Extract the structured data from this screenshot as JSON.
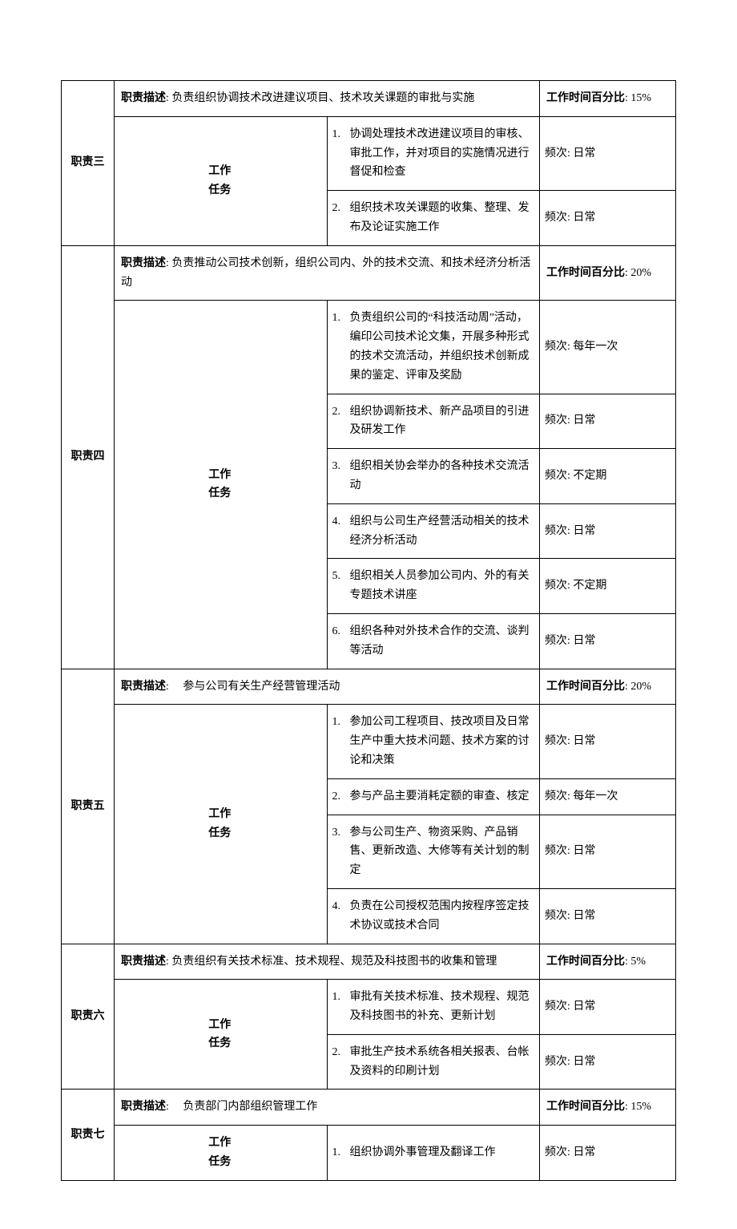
{
  "labels": {
    "desc": "职责描述",
    "taskHeader": "工作\n任务",
    "percent": "工作时间百分比",
    "freq": "频次"
  },
  "colors": {
    "text": "#000000",
    "border": "#000000",
    "background": "#ffffff"
  },
  "duties": [
    {
      "name": "职责三",
      "desc": "负责组织协调技术改进建议项目、技术攻关课题的审批与实施",
      "percent": "15%",
      "tasks": [
        {
          "n": "1.",
          "text": "协调处理技术改进建议项目的审核、审批工作，并对项目的实施情况进行督促和检查",
          "freq": "日常"
        },
        {
          "n": "2.",
          "text": "组织技术攻关课题的收集、整理、发布及论证实施工作",
          "freq": "日常"
        }
      ]
    },
    {
      "name": "职责四",
      "desc": "负责推动公司技术创新，组织公司内、外的技术交流、和技术经济分析活动",
      "percent": "20%",
      "tasks": [
        {
          "n": "1.",
          "text": "负责组织公司的“科技活动周”活动，编印公司技术论文集，开展多种形式的技术交流活动，并组织技术创新成果的鉴定、评审及奖励",
          "freq": "每年一次"
        },
        {
          "n": "2.",
          "text": "组织协调新技术、新产品项目的引进及研发工作",
          "freq": "日常"
        },
        {
          "n": "3.",
          "text": "组织相关协会举办的各种技术交流活动",
          "freq": "不定期"
        },
        {
          "n": "4.",
          "text": "组织与公司生产经营活动相关的技术经济分析活动",
          "freq": "日常"
        },
        {
          "n": "5.",
          "text": "组织相关人员参加公司内、外的有关专题技术讲座",
          "freq": "不定期"
        },
        {
          "n": "6.",
          "text": "组织各种对外技术合作的交流、谈判等活动",
          "freq": "日常"
        }
      ]
    },
    {
      "name": "职责五",
      "desc": "　参与公司有关生产经营管理活动",
      "percent": "20%",
      "tasks": [
        {
          "n": "1.",
          "text": "参加公司工程项目、技改项目及日常生产中重大技术问题、技术方案的讨论和决策",
          "freq": "日常"
        },
        {
          "n": "2.",
          "text": "参与产品主要消耗定额的审查、核定",
          "freq": "每年一次"
        },
        {
          "n": "3.",
          "text": "参与公司生产、物资采购、产品销售、更新改造、大修等有关计划的制定",
          "freq": "日常"
        },
        {
          "n": "4.",
          "text": "负责在公司授权范围内按程序签定技术协议或技术合同",
          "freq": "日常"
        }
      ]
    },
    {
      "name": "职责六",
      "desc": "负责组织有关技术标准、技术规程、规范及科技图书的收集和管理",
      "percent": "5%",
      "tasks": [
        {
          "n": "1.",
          "text": "审批有关技术标准、技术规程、规范及科技图书的补充、更新计划",
          "freq": "日常"
        },
        {
          "n": "2.",
          "text": "审批生产技术系统各相关报表、台帐及资料的印刷计划",
          "freq": "日常"
        }
      ]
    },
    {
      "name": "职责七",
      "desc": "　负责部门内部组织管理工作",
      "percent": "15%",
      "tasks": [
        {
          "n": "1.",
          "text": "组织协调外事管理及翻译工作",
          "freq": "日常"
        }
      ]
    }
  ]
}
